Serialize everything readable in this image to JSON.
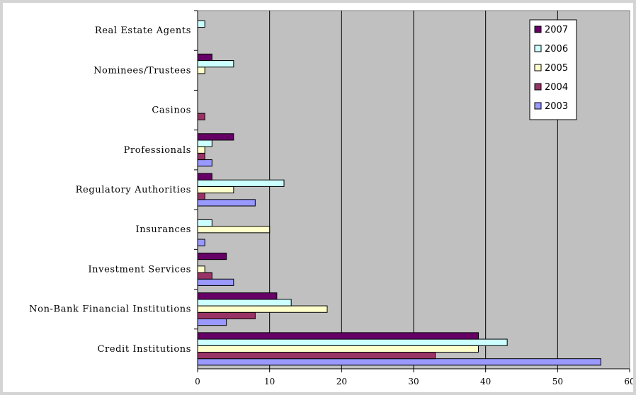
{
  "chart_data": {
    "type": "bar",
    "orientation": "horizontal",
    "categories": [
      "Credit Institutions",
      "Non-Bank Financial Institutions",
      "Investment Services",
      "Insurances",
      "Regulatory Authorities",
      "Professionals",
      "Casinos",
      "Nominees/Trustees",
      "Real Estate Agents"
    ],
    "series": [
      {
        "name": "2003",
        "color": "#9999ff",
        "values": [
          56,
          4,
          5,
          1,
          8,
          2,
          0,
          0,
          0
        ]
      },
      {
        "name": "2004",
        "color": "#993366",
        "values": [
          33,
          8,
          2,
          0,
          1,
          1,
          1,
          0,
          0
        ]
      },
      {
        "name": "2005",
        "color": "#ffffcc",
        "values": [
          39,
          18,
          1,
          10,
          5,
          1,
          0,
          1,
          0
        ]
      },
      {
        "name": "2006",
        "color": "#ccffff",
        "values": [
          43,
          13,
          0,
          2,
          12,
          2,
          0,
          5,
          1
        ]
      },
      {
        "name": "2007",
        "color": "#660066",
        "values": [
          39,
          11,
          4,
          0,
          2,
          5,
          0,
          2,
          0
        ]
      }
    ],
    "xlim": [
      0,
      60
    ],
    "xticks": [
      "0",
      "10",
      "20",
      "30",
      "40",
      "50",
      "60"
    ],
    "grid": true,
    "legend_position": "top-right",
    "legend_order": [
      "2007",
      "2006",
      "2005",
      "2004",
      "2003"
    ],
    "plot_background": "#c0c0c0",
    "title": "",
    "xlabel": "",
    "ylabel": ""
  }
}
